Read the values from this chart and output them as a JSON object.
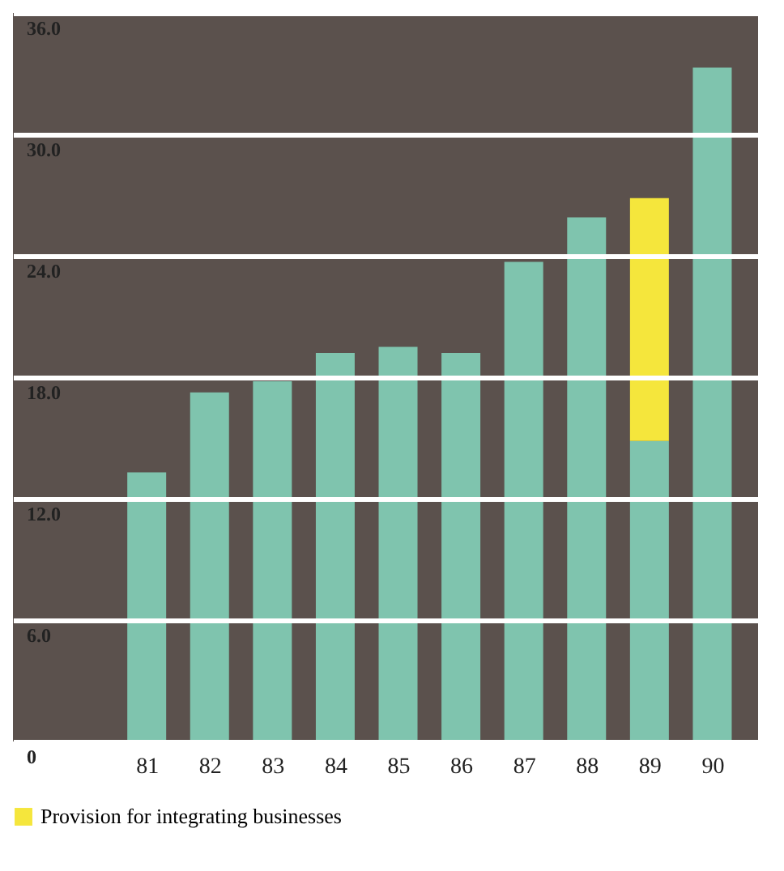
{
  "chart_data": {
    "type": "bar",
    "stacked": true,
    "categories": [
      "81",
      "82",
      "83",
      "84",
      "85",
      "86",
      "87",
      "88",
      "89",
      "90"
    ],
    "series": [
      {
        "color": "#7fc4ae",
        "values": [
          13.3,
          17.25,
          17.8,
          19.2,
          19.5,
          19.2,
          23.7,
          25.9,
          14.85,
          33.3
        ]
      },
      {
        "name": "Provision for integrating businesses",
        "color": "#f5e63c",
        "values": [
          null,
          null,
          null,
          null,
          null,
          null,
          null,
          null,
          12.0,
          null
        ]
      }
    ],
    "ylim": [
      0,
      36
    ],
    "yticks": [
      0,
      {
        "value": 6,
        "label": "6.0"
      },
      {
        "value": 12,
        "label": "12.0"
      },
      {
        "value": 18,
        "label": "18.0"
      },
      {
        "value": 24,
        "label": "24.0"
      },
      {
        "value": 30,
        "label": "30.0"
      },
      {
        "value": 36,
        "label": "36.0"
      }
    ],
    "grid": "y",
    "legend": "bottom"
  }
}
